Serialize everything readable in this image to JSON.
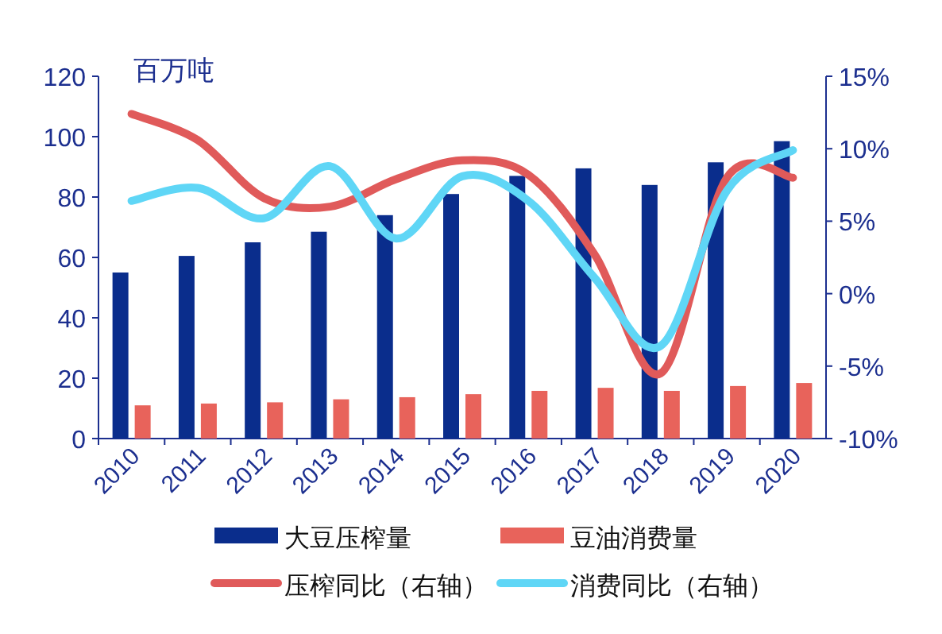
{
  "chart_data": {
    "type": "bar",
    "ylabel": "百万吨",
    "categories": [
      "2010",
      "2011",
      "2012",
      "2013",
      "2014",
      "2015",
      "2016",
      "2017",
      "2018",
      "2019",
      "2020"
    ],
    "series": [
      {
        "name": "大豆压榨量",
        "color": "#0a2d8c",
        "values": [
          55,
          60.5,
          65,
          68.5,
          74,
          81,
          87,
          89.5,
          84,
          91.5,
          98.5
        ]
      },
      {
        "name": "豆油消费量",
        "color": "#e8635b",
        "values": [
          11,
          11.6,
          12,
          13,
          13.7,
          14.7,
          15.8,
          16.8,
          15.8,
          17.4,
          18.4
        ]
      },
      {
        "name": "压榨同比（右轴）",
        "type": "line",
        "axis": "y2",
        "color": "#e05a5a",
        "values": [
          12.4,
          10.6,
          6.6,
          6.0,
          7.9,
          9.2,
          8.2,
          2.7,
          -5.5,
          8.0,
          8.0
        ]
      },
      {
        "name": "消费同比（右轴）",
        "type": "line",
        "axis": "y2",
        "color": "#5fd6f6",
        "values": [
          6.4,
          7.3,
          5.2,
          8.8,
          3.8,
          8.1,
          6.4,
          1.1,
          -3.6,
          7.1,
          9.9
        ]
      }
    ],
    "ylim": [
      0,
      120
    ],
    "yticks": [
      0,
      20,
      40,
      60,
      80,
      100,
      120
    ],
    "y2lim": [
      -10,
      15
    ],
    "y2ticks": [
      {
        "value": -10,
        "label": "-10%"
      },
      {
        "value": -5,
        "label": "-5%"
      },
      {
        "value": 0,
        "label": "0%"
      },
      {
        "value": 5,
        "label": "5%"
      },
      {
        "value": 10,
        "label": "10%"
      },
      {
        "value": 15,
        "label": "15%"
      }
    ],
    "legend": "bottom",
    "grid": false
  }
}
